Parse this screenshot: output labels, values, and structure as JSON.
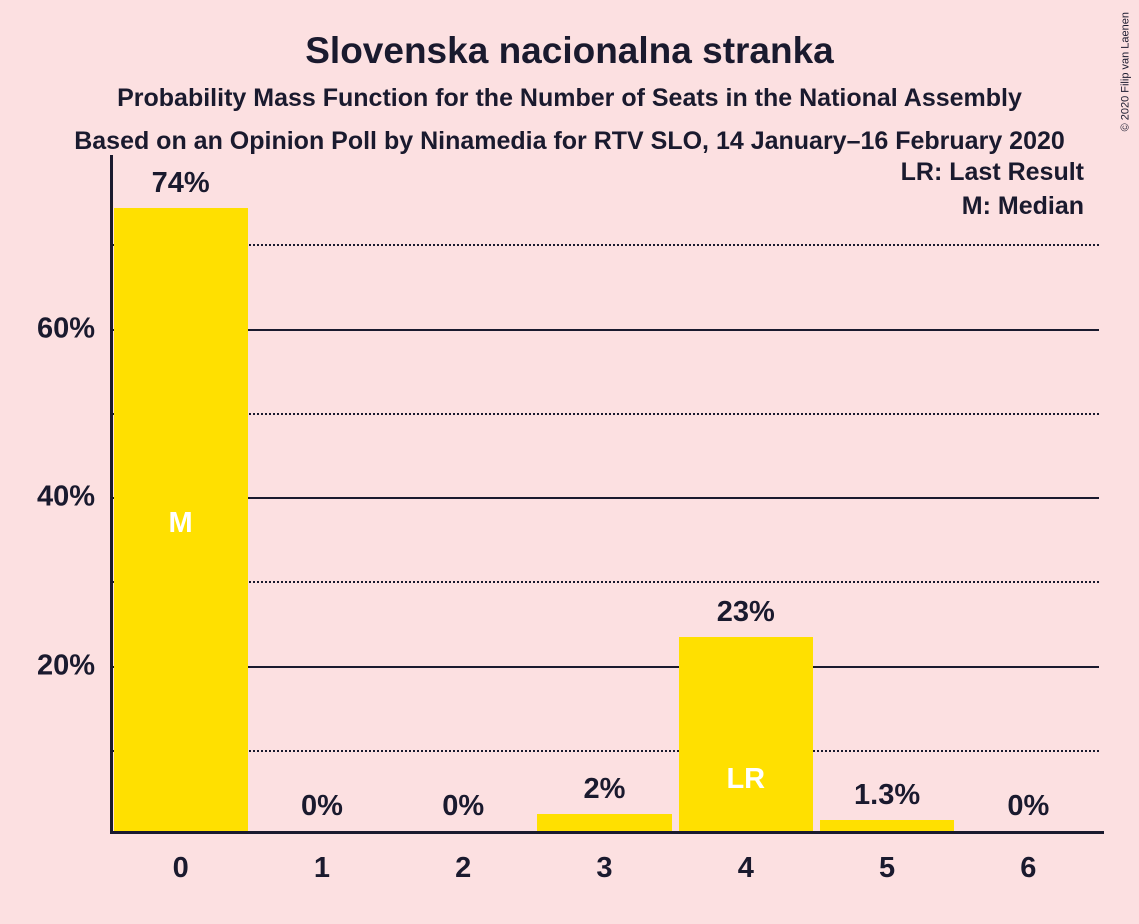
{
  "chart": {
    "type": "bar",
    "title": "Slovenska nacionalna stranka",
    "title_fontsize": 37,
    "subtitle": "Probability Mass Function for the Number of Seats in the National Assembly",
    "subtitle_fontsize": 25,
    "subtitle2": "Based on an Opinion Poll by Ninamedia for RTV SLO, 14 January–16 February 2020",
    "subtitle2_fontsize": 25,
    "background_color": "#fce0e1",
    "text_color": "#1a1a2e",
    "bar_color": "#ffe000",
    "bar_width_ratio": 0.95,
    "ylim_max": 80,
    "y_major_ticks": [
      20,
      40,
      60
    ],
    "y_minor_ticks": [
      10,
      30,
      50,
      70
    ],
    "y_tick_fontsize": 29,
    "x_tick_fontsize": 29,
    "bar_label_fontsize": 29,
    "inner_label_fontsize": 29,
    "categories": [
      "0",
      "1",
      "2",
      "3",
      "4",
      "5",
      "6"
    ],
    "values": [
      74,
      0,
      0,
      2,
      23,
      1.3,
      0
    ],
    "value_labels": [
      "74%",
      "0%",
      "0%",
      "2%",
      "23%",
      "1.3%",
      "0%"
    ],
    "median_index": 0,
    "median_label": "M",
    "last_result_index": 4,
    "last_result_label": "LR",
    "legend_lr": "LR: Last Result",
    "legend_m": "M: Median",
    "legend_fontsize": 25,
    "copyright": "© 2020 Filip van Laenen"
  }
}
